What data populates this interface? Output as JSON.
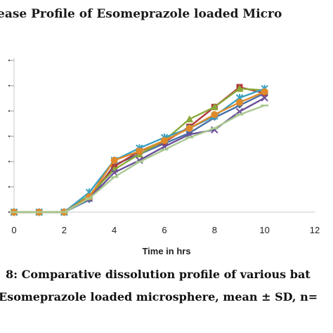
{
  "chart_data": {
    "type": "line",
    "title": "ease Profile of Esomeprazole loaded Micro",
    "xlabel": "Time in hrs",
    "ylabel": "",
    "x_ticks": [
      "0",
      "2",
      "4",
      "6",
      "8",
      "10",
      "12"
    ],
    "xlim": [
      0,
      12
    ],
    "ylim": [
      0,
      100
    ],
    "grid": false,
    "legend": "none",
    "series": [
      {
        "color": "#4a6fa5",
        "marker": "diamond",
        "x": [
          0,
          1,
          2,
          3,
          4,
          5,
          6,
          7,
          8,
          9,
          10
        ],
        "y": [
          0,
          0,
          0,
          8,
          31,
          38,
          45,
          52,
          62,
          70,
          78
        ]
      },
      {
        "color": "#b03a3a",
        "marker": "square",
        "x": [
          0,
          1,
          2,
          3,
          4,
          5,
          6,
          7,
          8,
          9,
          10
        ],
        "y": [
          0,
          0,
          0,
          10,
          30,
          40,
          46,
          56,
          69,
          82,
          78
        ]
      },
      {
        "color": "#8aaa3a",
        "marker": "triangle",
        "x": [
          0,
          1,
          2,
          3,
          4,
          5,
          6,
          7,
          8,
          9,
          10
        ],
        "y": [
          0,
          0,
          0,
          11,
          28,
          38,
          47,
          61,
          69,
          81,
          80
        ]
      },
      {
        "color": "#6a4f9a",
        "marker": "x",
        "x": [
          0,
          1,
          2,
          3,
          4,
          5,
          6,
          7,
          8,
          9,
          10
        ],
        "y": [
          0,
          0,
          0,
          9,
          26,
          34,
          43,
          51,
          54,
          66,
          75
        ]
      },
      {
        "color": "#3aa0c0",
        "marker": "star",
        "x": [
          0,
          1,
          2,
          3,
          4,
          5,
          6,
          7,
          8,
          9,
          10
        ],
        "y": [
          0,
          0,
          0,
          13,
          34,
          42,
          49,
          55,
          63,
          75,
          81
        ]
      },
      {
        "color": "#e08a2a",
        "marker": "circle",
        "x": [
          0,
          1,
          2,
          3,
          4,
          5,
          6,
          7,
          8,
          9,
          10
        ],
        "y": [
          0,
          0,
          0,
          10,
          34,
          40,
          47,
          55,
          64,
          72,
          79
        ]
      },
      {
        "color": "#a8c890",
        "marker": "dash",
        "x": [
          0,
          1,
          2,
          3,
          4,
          5,
          6,
          7,
          8,
          9,
          10
        ],
        "y": [
          0,
          0,
          0,
          9,
          23,
          33,
          41,
          49,
          55,
          64,
          70
        ]
      }
    ],
    "caption_line1": "8: Comparative dissolution profile of various bat",
    "caption_line2": "Esomeprazole loaded microsphere, mean ± SD, n="
  }
}
